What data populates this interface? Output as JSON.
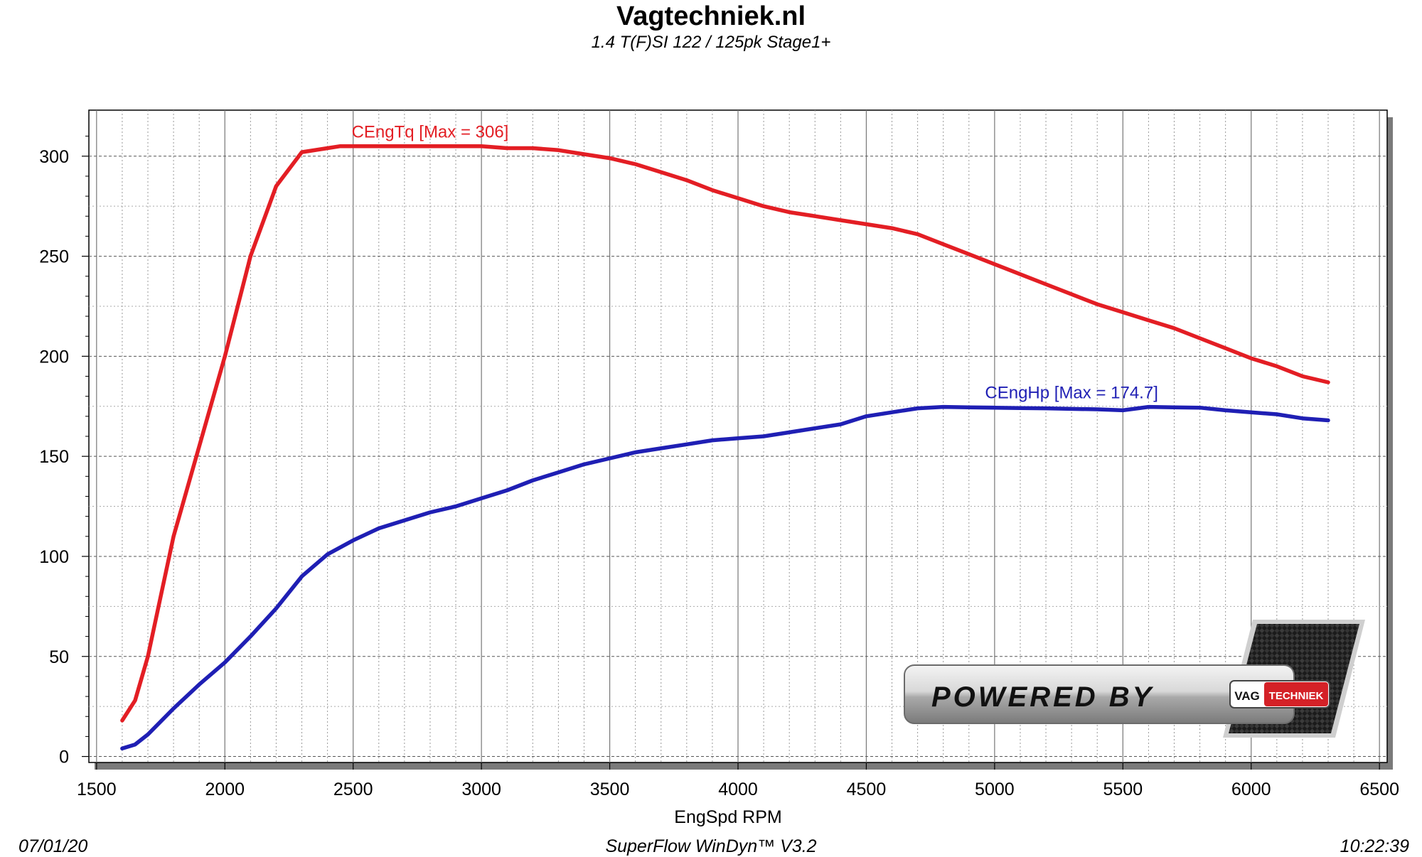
{
  "header": {
    "title": "Vagtechniek.nl",
    "subtitle": "1.4 T(F)SI 122 / 125pk Stage1+"
  },
  "footer": {
    "date": "07/01/20",
    "software": "SuperFlow WinDyn™  V3.2",
    "time": "10:22:39"
  },
  "logo": {
    "powered_by": "POWERED  BY",
    "brand_left": "VAG",
    "brand_right": "TECHNIEK"
  },
  "chart_data": {
    "type": "line",
    "xlabel": "EngSpd RPM",
    "ylabel": "",
    "xlim": [
      1500,
      6500
    ],
    "ylim": [
      0,
      320
    ],
    "x_ticks": [
      1500,
      2000,
      2500,
      3000,
      3500,
      4000,
      4500,
      5000,
      5500,
      6000,
      6500
    ],
    "y_ticks": [
      0,
      50,
      100,
      150,
      200,
      250,
      300
    ],
    "grid": true,
    "series": [
      {
        "name": "CEngTq",
        "label": "CEngTq [Max = 306]",
        "color": "#e31e24",
        "x": [
          1600,
          1650,
          1700,
          1750,
          1800,
          1900,
          2000,
          2100,
          2200,
          2300,
          2400,
          2450,
          2500,
          2600,
          2700,
          2800,
          2900,
          3000,
          3100,
          3200,
          3300,
          3400,
          3500,
          3600,
          3700,
          3800,
          3900,
          4000,
          4100,
          4200,
          4300,
          4400,
          4500,
          4600,
          4700,
          4800,
          4900,
          5000,
          5100,
          5200,
          5300,
          5400,
          5500,
          5600,
          5700,
          5800,
          5900,
          6000,
          6100,
          6200,
          6300
        ],
        "values": [
          18,
          28,
          50,
          80,
          110,
          155,
          200,
          250,
          285,
          302,
          304,
          305,
          305,
          305,
          305,
          305,
          305,
          305,
          304,
          304,
          303,
          301,
          299,
          296,
          292,
          288,
          283,
          279,
          275,
          272,
          270,
          268,
          266,
          264,
          261,
          256,
          251,
          246,
          241,
          236,
          231,
          226,
          222,
          218,
          214,
          209,
          204,
          199,
          195,
          190,
          187
        ]
      },
      {
        "name": "CEngHp",
        "label": "CEngHp [Max = 174.7]",
        "color": "#1f1fb4",
        "x": [
          1600,
          1650,
          1700,
          1800,
          1900,
          2000,
          2100,
          2200,
          2300,
          2400,
          2500,
          2600,
          2700,
          2800,
          2900,
          3000,
          3100,
          3200,
          3300,
          3400,
          3500,
          3600,
          3700,
          3800,
          3900,
          4000,
          4100,
          4200,
          4300,
          4400,
          4500,
          4600,
          4700,
          4800,
          4900,
          5000,
          5100,
          5200,
          5300,
          5400,
          5500,
          5600,
          5700,
          5800,
          5900,
          6000,
          6100,
          6200,
          6300
        ],
        "values": [
          4,
          6,
          11,
          24,
          36,
          47,
          60,
          74,
          90,
          101,
          108,
          114,
          118,
          122,
          125,
          129,
          133,
          138,
          142,
          146,
          149,
          152,
          154,
          156,
          158,
          159,
          160,
          162,
          164,
          166,
          170,
          172,
          174,
          174.7,
          174.5,
          174.3,
          174.1,
          174,
          173.7,
          173.5,
          173,
          174.7,
          174.5,
          174.3,
          173,
          172,
          171,
          169,
          168
        ]
      }
    ]
  }
}
